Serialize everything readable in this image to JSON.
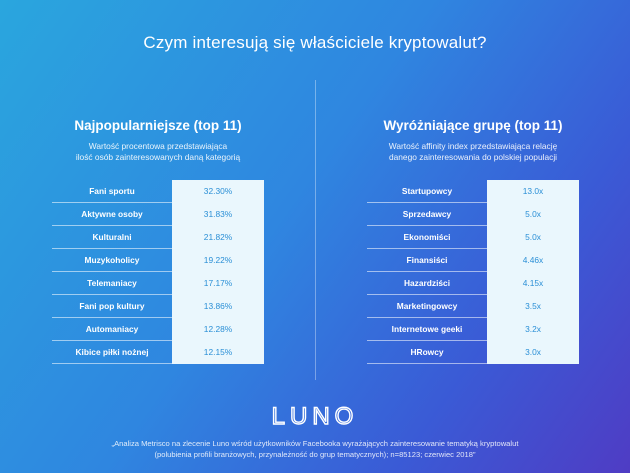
{
  "title": "Czym interesują się właściciele kryptowalut?",
  "logo_text": "LUNO",
  "footnote_line1": "„Analiza Metrisco na zlecenie Luno wśród użytkowników Facebooka wyrażających zainteresowanie tematyką kryptowalut",
  "footnote_line2": "(polubienia profili branżowych, przynależność do grup tematycznych); n=85123; czerwiec 2018”",
  "colors": {
    "background_start": "#2aa6de",
    "background_end": "#4f3cc4",
    "value_cell_bg": "#eaf7fd",
    "value_text": "#2a8fd6"
  },
  "chart_data": [
    {
      "type": "table",
      "title": "Najpopularniejsze (top 11)",
      "subtitle_line1": "Wartość procentowa przedstawiająca",
      "subtitle_line2": "ilość osób zainteresowanych daną kategorią",
      "categories": [
        "Fani sportu",
        "Aktywne osoby",
        "Kulturalni",
        "Muzykoholicy",
        "Telemaniacy",
        "Fani pop kultury",
        "Automaniacy",
        "Kibice piłki nożnej"
      ],
      "values": [
        32.3,
        31.83,
        21.82,
        19.22,
        17.17,
        13.86,
        12.28,
        12.15
      ],
      "value_labels": [
        "32.30%",
        "31.83%",
        "21.82%",
        "19.22%",
        "17.17%",
        "13.86%",
        "12.28%",
        "12.15%"
      ]
    },
    {
      "type": "table",
      "title": "Wyróżniające grupę (top 11)",
      "subtitle_line1": "Wartość affinity index przedstawiająca relację",
      "subtitle_line2": "danego zainteresowania do polskiej populacji",
      "categories": [
        "Startupowcy",
        "Sprzedawcy",
        "Ekonomiści",
        "Finansiści",
        "Hazardziści",
        "Marketingowcy",
        "Internetowe geeki",
        "HRowcy"
      ],
      "values": [
        13.0,
        5.0,
        5.0,
        4.46,
        4.15,
        3.5,
        3.2,
        3.0
      ],
      "value_labels": [
        "13.0x",
        "5.0x",
        "5.0x",
        "4.46x",
        "4.15x",
        "3.5x",
        "3.2x",
        "3.0x"
      ]
    }
  ]
}
